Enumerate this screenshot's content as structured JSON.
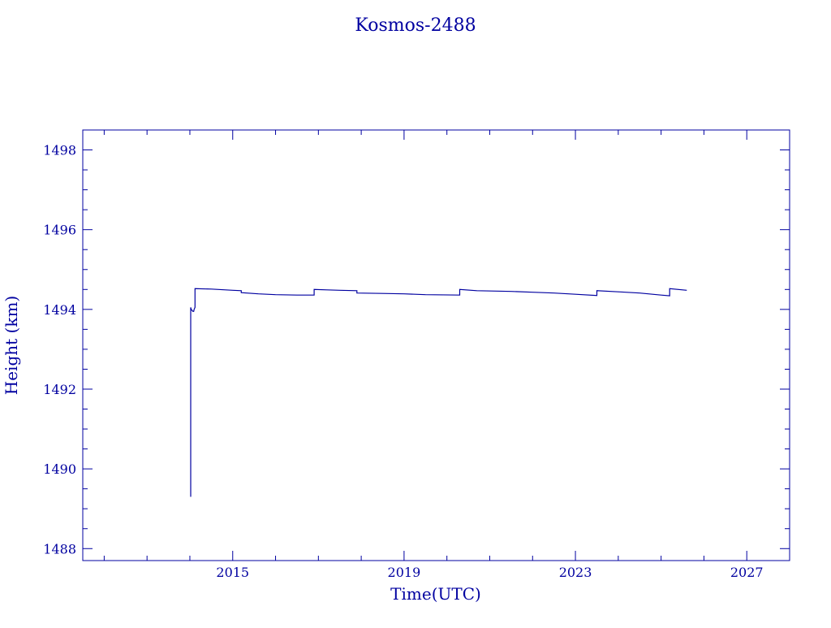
{
  "colors": {
    "ink": "#0000a0",
    "background": "#ffffff"
  },
  "chart_data": {
    "type": "line",
    "title": "Kosmos-2488",
    "xlabel": "Time(UTC)",
    "ylabel": "Height (km)",
    "xlim": [
      2011.5,
      2028.0
    ],
    "ylim": [
      1487.7,
      1498.5
    ],
    "x_major_ticks": [
      2015,
      2019,
      2023,
      2027
    ],
    "x_tick_labels": [
      "2015",
      "2019",
      "2023",
      "2027"
    ],
    "x_minor_step": 1,
    "y_major_ticks": [
      1488,
      1490,
      1492,
      1494,
      1496,
      1498
    ],
    "y_tick_labels": [
      "1488",
      "1490",
      "1492",
      "1494",
      "1496",
      "1498"
    ],
    "y_minor_step": 0.5,
    "grid": false,
    "legend": "none",
    "series": [
      {
        "x": [
          2014.02,
          2014.02,
          2014.03,
          2014.07,
          2014.09,
          2014.1,
          2014.12,
          2014.12,
          2014.5,
          2015.0,
          2015.2,
          2015.2,
          2015.6,
          2016.0,
          2016.5,
          2016.9,
          2016.9,
          2017.2,
          2017.5,
          2017.9,
          2017.9,
          2018.5,
          2019.0,
          2019.5,
          2020.3,
          2020.3,
          2020.7,
          2021.5,
          2022.0,
          2022.5,
          2023.0,
          2023.5,
          2023.5,
          2024.0,
          2024.5,
          2025.0,
          2025.2,
          2025.2,
          2025.6
        ],
        "y": [
          1489.3,
          1494.05,
          1494.0,
          1493.95,
          1493.95,
          1494.0,
          1494.05,
          1494.52,
          1494.51,
          1494.48,
          1494.47,
          1494.42,
          1494.39,
          1494.37,
          1494.36,
          1494.36,
          1494.5,
          1494.49,
          1494.48,
          1494.47,
          1494.41,
          1494.4,
          1494.39,
          1494.37,
          1494.36,
          1494.5,
          1494.47,
          1494.45,
          1494.43,
          1494.41,
          1494.38,
          1494.35,
          1494.47,
          1494.44,
          1494.41,
          1494.36,
          1494.34,
          1494.52,
          1494.48
        ]
      }
    ]
  }
}
